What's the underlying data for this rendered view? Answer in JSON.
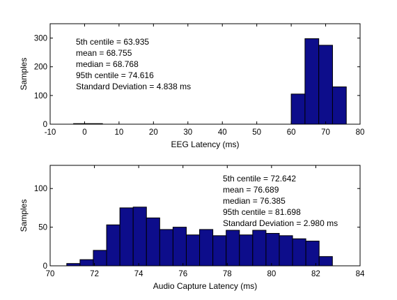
{
  "colors": {
    "bar_fill": "#0d0d8b",
    "bar_edge": "#000000",
    "axes": "#000000",
    "background": "#ffffff"
  },
  "chart_data": [
    {
      "type": "bar",
      "title": "",
      "xlabel": "EEG Latency (ms)",
      "ylabel": "Samples",
      "xlim": [
        -10,
        80
      ],
      "ylim": [
        0,
        350
      ],
      "xticks": [
        "-10",
        "0",
        "10",
        "20",
        "30",
        "40",
        "50",
        "60",
        "70",
        "80"
      ],
      "yticks": [
        "0",
        "100",
        "200",
        "300"
      ],
      "grid": false,
      "bins": [
        {
          "x0": -3.2,
          "x1": 5.2,
          "value": 2
        },
        {
          "x0": 60.0,
          "x1": 64.0,
          "value": 105
        },
        {
          "x0": 64.0,
          "x1": 68.0,
          "value": 298
        },
        {
          "x0": 68.0,
          "x1": 72.0,
          "value": 275
        },
        {
          "x0": 72.0,
          "x1": 76.0,
          "value": 130
        }
      ],
      "annotations": [
        "5th centile = 63.935",
        "mean = 68.755",
        "median = 68.768",
        "95th centile = 74.616",
        "Standard Deviation = 4.838 ms"
      ]
    },
    {
      "type": "bar",
      "title": "",
      "xlabel": "Audio Capture Latency (ms)",
      "ylabel": "Samples",
      "xlim": [
        70,
        84
      ],
      "ylim": [
        0,
        130
      ],
      "xticks": [
        "70",
        "72",
        "74",
        "76",
        "78",
        "80",
        "82",
        "84"
      ],
      "yticks": [
        "0",
        "50",
        "100"
      ],
      "grid": false,
      "bins": [
        {
          "x0": 70.75,
          "x1": 71.35,
          "value": 3
        },
        {
          "x0": 71.35,
          "x1": 71.95,
          "value": 8
        },
        {
          "x0": 71.95,
          "x1": 72.55,
          "value": 20
        },
        {
          "x0": 72.55,
          "x1": 73.15,
          "value": 53
        },
        {
          "x0": 73.15,
          "x1": 73.75,
          "value": 75
        },
        {
          "x0": 73.75,
          "x1": 74.35,
          "value": 76
        },
        {
          "x0": 74.35,
          "x1": 74.95,
          "value": 62
        },
        {
          "x0": 74.95,
          "x1": 75.55,
          "value": 47
        },
        {
          "x0": 75.55,
          "x1": 76.15,
          "value": 50
        },
        {
          "x0": 76.15,
          "x1": 76.75,
          "value": 40
        },
        {
          "x0": 76.75,
          "x1": 77.35,
          "value": 47
        },
        {
          "x0": 77.35,
          "x1": 77.95,
          "value": 39
        },
        {
          "x0": 77.95,
          "x1": 78.55,
          "value": 46
        },
        {
          "x0": 78.55,
          "x1": 79.15,
          "value": 40
        },
        {
          "x0": 79.15,
          "x1": 79.75,
          "value": 46
        },
        {
          "x0": 79.75,
          "x1": 80.35,
          "value": 42
        },
        {
          "x0": 80.35,
          "x1": 80.95,
          "value": 39
        },
        {
          "x0": 80.95,
          "x1": 81.55,
          "value": 35
        },
        {
          "x0": 81.55,
          "x1": 82.15,
          "value": 32
        },
        {
          "x0": 82.15,
          "x1": 82.75,
          "value": 12
        }
      ],
      "annotations": [
        "5th centile = 72.642",
        "mean = 76.689",
        "median = 76.385",
        "95th centile = 81.698",
        "Standard Deviation = 2.980 ms"
      ]
    }
  ]
}
